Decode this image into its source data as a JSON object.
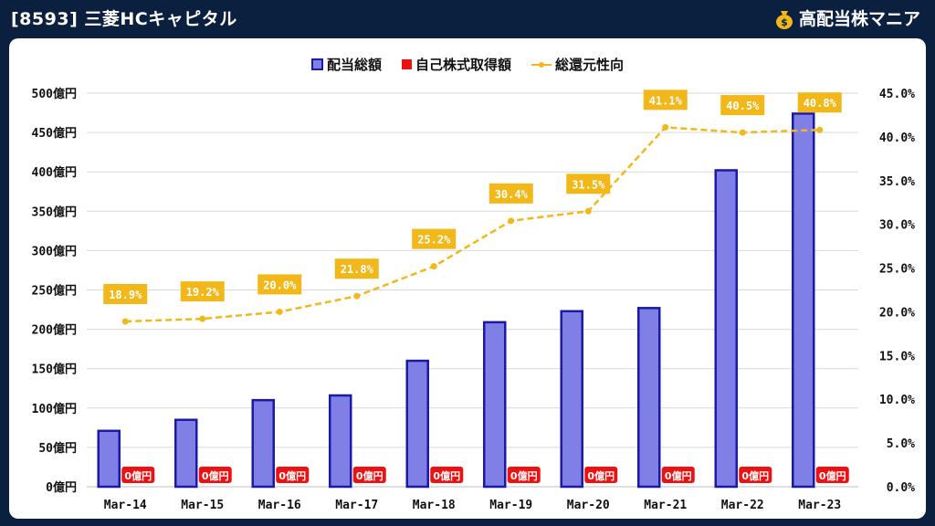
{
  "header": {
    "title": "[8593] 三菱HCキャピタル",
    "brand": "高配当株マニア",
    "brand_icon": "money-bag-icon"
  },
  "colors": {
    "background": "#0b1f3f",
    "dividend_fill": "#7f7fe6",
    "dividend_stroke": "#1a1aa6",
    "buyback": "#ee1111",
    "payout": "#f2b81a"
  },
  "chart_data": {
    "type": "bar",
    "categories": [
      "Mar-14",
      "Mar-15",
      "Mar-16",
      "Mar-17",
      "Mar-18",
      "Mar-19",
      "Mar-20",
      "Mar-21",
      "Mar-22",
      "Mar-23"
    ],
    "series": [
      {
        "name": "配当総額",
        "type": "bar",
        "axis": "left",
        "values": [
          71,
          85,
          110,
          116,
          160,
          209,
          223,
          227,
          402,
          474
        ]
      },
      {
        "name": "自己株式取得額",
        "type": "bar",
        "axis": "left",
        "values": [
          0,
          0,
          0,
          0,
          0,
          0,
          0,
          0,
          0,
          0
        ],
        "labels": [
          "0億円",
          "0億円",
          "0億円",
          "0億円",
          "0億円",
          "0億円",
          "0億円",
          "0億円",
          "0億円",
          "0億円"
        ]
      },
      {
        "name": "総還元性向",
        "type": "line",
        "axis": "right",
        "values": [
          18.9,
          19.2,
          20.0,
          21.8,
          25.2,
          30.4,
          31.5,
          41.1,
          40.5,
          40.8
        ],
        "labels": [
          "18.9%",
          "19.2%",
          "20.0%",
          "21.8%",
          "25.2%",
          "30.4%",
          "31.5%",
          "41.1%",
          "40.5%",
          "40.8%"
        ]
      }
    ],
    "y_left": {
      "ylim": [
        0,
        500
      ],
      "ticks": [
        "0億円",
        "50億円",
        "100億円",
        "150億円",
        "200億円",
        "250億円",
        "300億円",
        "350億円",
        "400億円",
        "450億円",
        "500億円"
      ]
    },
    "y_right": {
      "ylim": [
        0,
        45
      ],
      "ticks": [
        "0.0%",
        "5.0%",
        "10.0%",
        "15.0%",
        "20.0%",
        "25.0%",
        "30.0%",
        "35.0%",
        "40.0%",
        "45.0%"
      ]
    },
    "grid": true,
    "legend_position": "top-center"
  }
}
